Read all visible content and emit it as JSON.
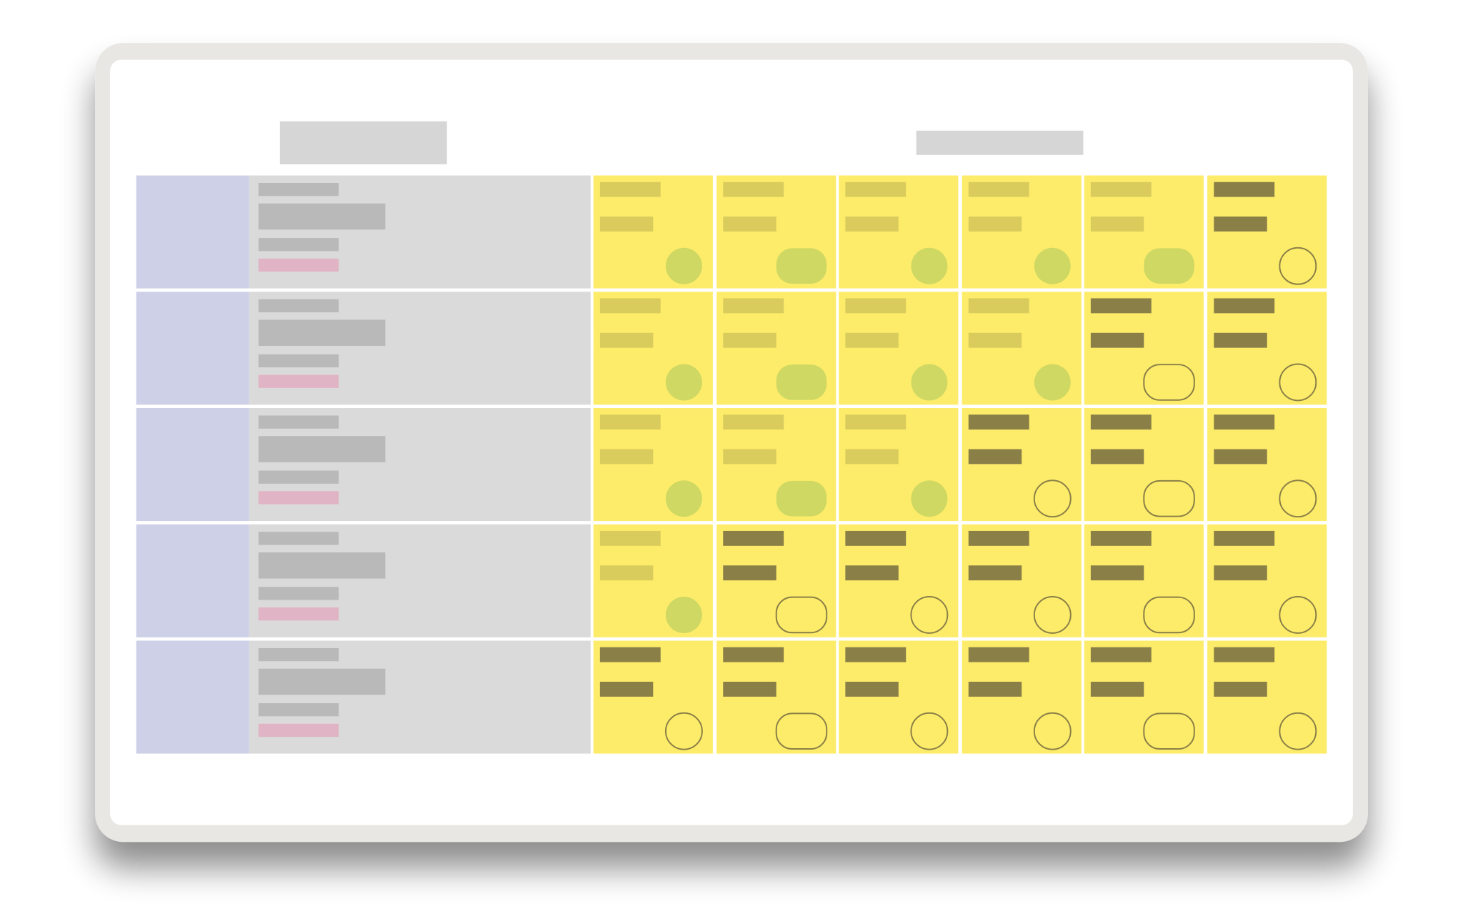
{
  "board": {
    "rows": [
      [
        true,
        true,
        true,
        true,
        true,
        false
      ],
      [
        true,
        true,
        true,
        true,
        false,
        false
      ],
      [
        true,
        true,
        true,
        false,
        false,
        false
      ],
      [
        true,
        false,
        false,
        false,
        false,
        false
      ],
      [
        false,
        false,
        false,
        false,
        false,
        false
      ]
    ]
  }
}
